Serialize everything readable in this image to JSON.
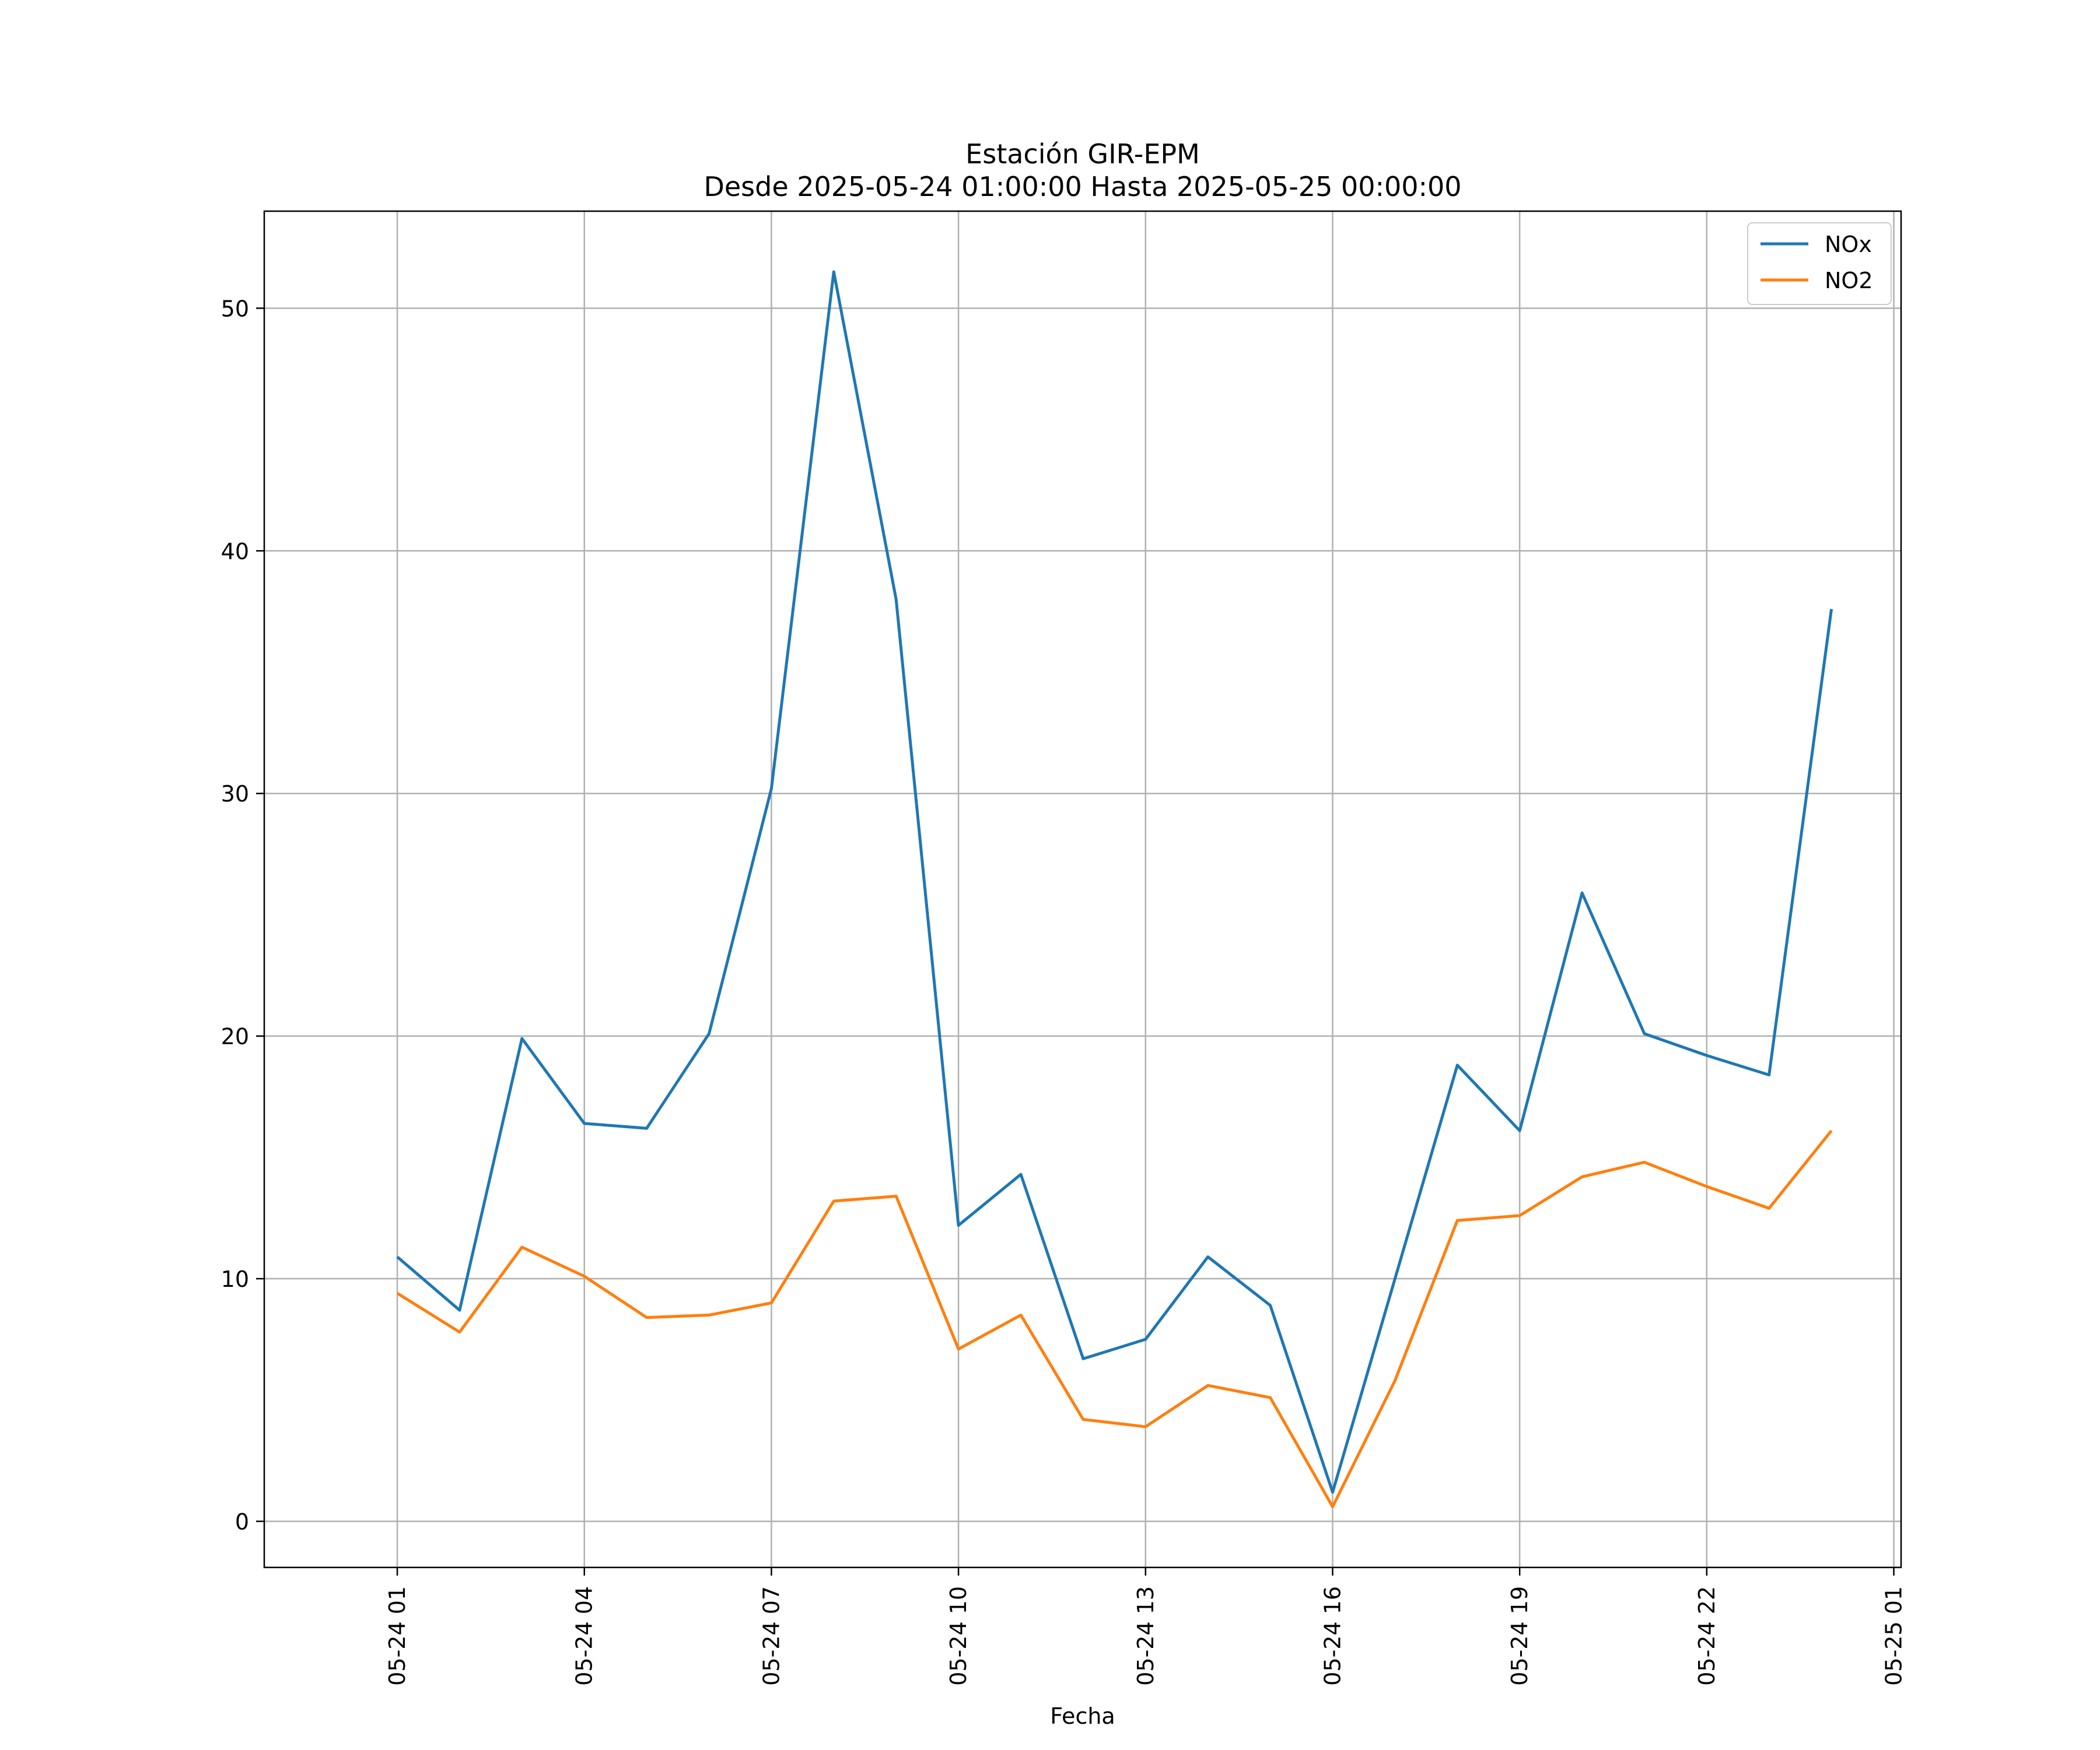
{
  "chart_data": {
    "type": "line",
    "title": "Estación GIR-EPM",
    "subtitle": "Desde 2025-05-24 01:00:00 Hasta 2025-05-25 00:00:00",
    "xlabel": "Fecha",
    "ylabel": "",
    "x": [
      "2025-05-24 01:00",
      "2025-05-24 02:00",
      "2025-05-24 03:00",
      "2025-05-24 04:00",
      "2025-05-24 05:00",
      "2025-05-24 06:00",
      "2025-05-24 07:00",
      "2025-05-24 08:00",
      "2025-05-24 09:00",
      "2025-05-24 10:00",
      "2025-05-24 11:00",
      "2025-05-24 12:00",
      "2025-05-24 13:00",
      "2025-05-24 14:00",
      "2025-05-24 15:00",
      "2025-05-24 16:00",
      "2025-05-24 17:00",
      "2025-05-24 18:00",
      "2025-05-24 19:00",
      "2025-05-24 20:00",
      "2025-05-24 21:00",
      "2025-05-24 22:00",
      "2025-05-24 23:00",
      "2025-05-25 00:00"
    ],
    "xlim": [
      "2025-05-23 22:52",
      "2025-05-25 01:07"
    ],
    "x_ticks": [
      {
        "x": "2025-05-24 01:00",
        "label": "05-24 01"
      },
      {
        "x": "2025-05-24 04:00",
        "label": "05-24 04"
      },
      {
        "x": "2025-05-24 07:00",
        "label": "05-24 07"
      },
      {
        "x": "2025-05-24 10:00",
        "label": "05-24 10"
      },
      {
        "x": "2025-05-24 13:00",
        "label": "05-24 13"
      },
      {
        "x": "2025-05-24 16:00",
        "label": "05-24 16"
      },
      {
        "x": "2025-05-24 19:00",
        "label": "05-24 19"
      },
      {
        "x": "2025-05-24 22:00",
        "label": "05-24 22"
      },
      {
        "x": "2025-05-25 01:00",
        "label": "05-25 01"
      }
    ],
    "ylim": [
      -1.9,
      54
    ],
    "y_ticks": [
      0,
      10,
      20,
      30,
      40,
      50
    ],
    "grid": true,
    "legend": "top-right",
    "series": [
      {
        "name": "NOx",
        "color": "#1f77b4",
        "values": [
          10.9,
          8.7,
          19.9,
          16.4,
          16.2,
          20.1,
          30.2,
          51.5,
          38.0,
          12.2,
          14.3,
          6.7,
          7.5,
          10.9,
          8.9,
          1.2,
          10.0,
          18.8,
          16.1,
          25.9,
          20.1,
          19.2,
          18.4,
          37.6
        ]
      },
      {
        "name": "NO2",
        "color": "#ff7f0e",
        "values": [
          9.4,
          7.8,
          11.3,
          10.1,
          8.4,
          8.5,
          9.0,
          13.2,
          13.4,
          7.1,
          8.5,
          4.2,
          3.9,
          5.6,
          5.1,
          0.6,
          5.8,
          12.4,
          12.6,
          14.2,
          14.8,
          13.8,
          12.9,
          16.1
        ]
      }
    ]
  }
}
